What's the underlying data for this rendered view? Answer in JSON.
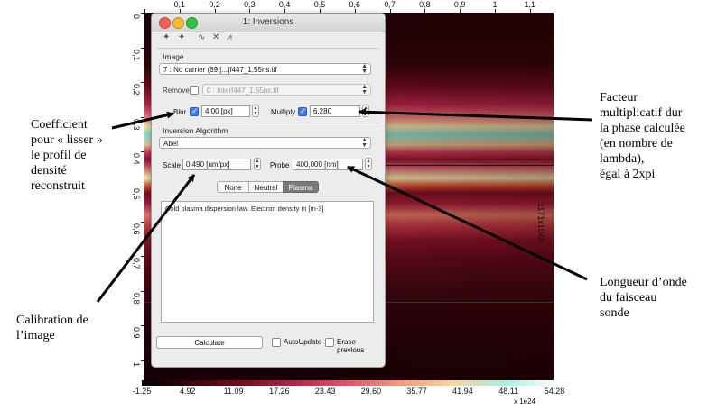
{
  "viewer": {
    "top_ticks": [
      "0",
      "0,1",
      "0,2",
      "0,3",
      "0,4",
      "0,5",
      "0,6",
      "0,7",
      "0,8",
      "0,9",
      "1",
      "1,1"
    ],
    "left_ticks": [
      "0",
      "0,1",
      "0,2",
      "0,3",
      "0,4",
      "0,5",
      "0,6",
      "0,7",
      "0,8",
      "0,9",
      "1"
    ],
    "right_label": "1171x1040",
    "colorbar_ticks": [
      "-1.25",
      "4.92",
      "11.09",
      "17.26",
      "23.43",
      "29.60",
      "35.77",
      "41.94",
      "48.11",
      "54.28"
    ],
    "colorbar_exponent": "x 1e24",
    "colormap": [
      "#000000",
      "#7b0d24",
      "#e0566a",
      "#f4d79c",
      "#a4f0e0",
      "#ffffff"
    ]
  },
  "window": {
    "title": "1: Inversions",
    "toolbar_icons": [
      "pin-icon",
      "pin-icon",
      "wave-icon",
      "cross-icon",
      "peak-icon"
    ],
    "image_section": "Image",
    "image_select": "7 : No carrier (69.[...]f447_1.55ns.tif",
    "remove_label": "Remove",
    "remove_select": "0 : Interf447_1.55ns.tif",
    "blur_label": "Blur",
    "blur_value": "4,00 [px]",
    "multiply_label": "Multiply",
    "multiply_value": "6,280",
    "algo_section": "Inversion Algorithm",
    "algo_select": "Abel",
    "scale_label": "Scale",
    "scale_value": "0,490 [um/px]",
    "probe_label": "Probe",
    "probe_value": "400,000 [nm]",
    "tabs": [
      "None",
      "Neutral",
      "Plasma"
    ],
    "selected_tab": "Plasma",
    "description": "Cold plasma dispersion law. Electron density in [m-3]",
    "calculate": "Calculate",
    "autoupdate": "AutoUpdate",
    "erase_previous": "Erase previous"
  },
  "annotations": {
    "coefficient": [
      "Coefficient",
      "pour « lisser »",
      "le profil de",
      "densité",
      "reconstruit"
    ],
    "calibration": [
      "Calibration de",
      "l’image"
    ],
    "facteur": [
      "Facteur",
      "multiplicatif dur",
      "la phase calculée",
      "(en nombre de",
      "lambda),",
      "égal à 2xpi"
    ],
    "longueur": [
      "Longueur d’onde",
      "du faisceau",
      "sonde"
    ]
  }
}
